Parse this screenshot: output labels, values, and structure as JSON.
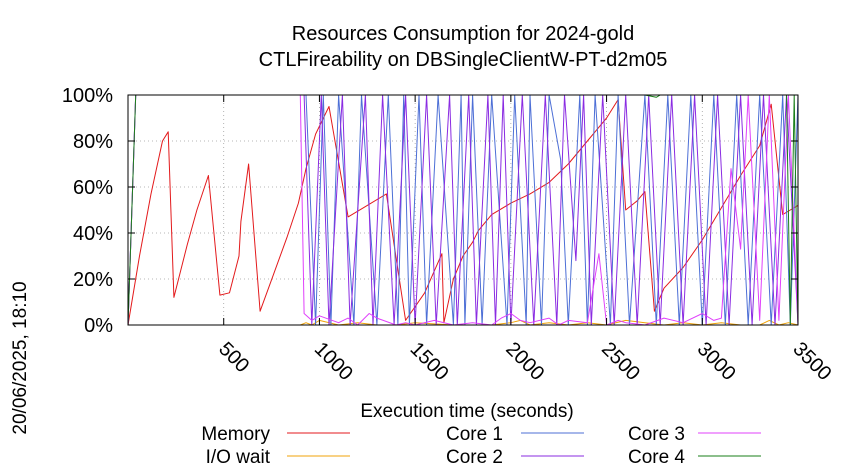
{
  "chart_data": {
    "type": "line",
    "title": "Resources Consumption for 2024-gold",
    "subtitle": "CTLFireability on DBSingleClientW-PT-d2m05",
    "xlabel": "Execution time (seconds)",
    "ylabel": "",
    "timestamp": "20/06/2025, 18:10",
    "xlim": [
      0,
      3500
    ],
    "ylim": [
      0,
      100
    ],
    "x_ticks": [
      500,
      1000,
      1500,
      2000,
      2500,
      3000,
      3500
    ],
    "x_tick_labels": [
      "500",
      "1000",
      "1500",
      "2000",
      "2500",
      "3000",
      "3500"
    ],
    "y_ticks": [
      0,
      20,
      40,
      60,
      80,
      100
    ],
    "y_tick_labels": [
      "0%",
      "20%",
      "40%",
      "60%",
      "80%",
      "100%"
    ],
    "grid": true,
    "legend_position": "bottom",
    "series": [
      {
        "name": "Memory",
        "color": "#e31a1c",
        "x": [
          0,
          60,
          120,
          180,
          210,
          240,
          310,
          360,
          420,
          480,
          530,
          580,
          590,
          630,
          690,
          760,
          830,
          890,
          930,
          980,
          1050,
          1150,
          1250,
          1350,
          1450,
          1550,
          1640,
          1650,
          1700,
          1750,
          1800,
          1830,
          1900,
          2000,
          2100,
          2200,
          2300,
          2400,
          2500,
          2560,
          2600,
          2660,
          2700,
          2750,
          2800,
          2900,
          3000,
          3100,
          3200,
          3300,
          3360,
          3420,
          3460,
          3500
        ],
        "values": [
          0,
          30,
          57,
          80,
          84,
          12,
          35,
          50,
          65,
          13,
          14,
          30,
          45,
          70,
          6,
          22,
          38,
          53,
          68,
          83,
          95,
          47,
          52,
          57,
          2,
          14,
          31,
          1,
          20,
          30,
          36,
          41,
          48,
          53,
          57,
          62,
          70,
          80,
          90,
          98,
          50,
          54,
          58,
          6,
          16,
          25,
          37,
          51,
          65,
          78,
          96,
          48,
          50,
          52
        ]
      },
      {
        "name": "I/O wait",
        "color": "#f0a30a",
        "x": [
          0,
          900,
          930,
          960,
          1000,
          1100,
          1200,
          1300,
          1400,
          1500,
          1700,
          1900,
          2000,
          2050,
          2100,
          2200,
          2300,
          2400,
          2500,
          2600,
          2700,
          2800,
          2900,
          3000,
          3100,
          3200,
          3300,
          3350,
          3400,
          3450,
          3500
        ],
        "values": [
          0,
          0,
          1,
          0,
          2,
          0,
          1,
          0,
          0,
          1,
          0,
          0,
          1,
          2,
          0,
          1,
          0,
          1,
          0,
          2,
          1,
          0,
          1,
          0,
          1,
          0,
          0,
          2,
          0,
          1,
          0
        ]
      },
      {
        "name": "Core 1",
        "color": "#4d6fd6",
        "x": [
          0,
          40,
          930,
          980,
          1020,
          1060,
          1100,
          1180,
          1220,
          1300,
          1360,
          1410,
          1440,
          1470,
          1520,
          1560,
          1620,
          1700,
          1740,
          1760,
          1800,
          1850,
          1900,
          1980,
          2020,
          2080,
          2100,
          2160,
          2200,
          2260,
          2300,
          2360,
          2400,
          2440,
          2520,
          2560,
          2620,
          2700,
          2760,
          2820,
          2880,
          2940,
          3000,
          3060,
          3120,
          3180,
          3240,
          3300,
          3360,
          3420,
          3460,
          3500
        ],
        "values": [
          0,
          100,
          100,
          0,
          100,
          0,
          100,
          0,
          100,
          0,
          100,
          0,
          100,
          0,
          100,
          0,
          100,
          0,
          100,
          0,
          100,
          0,
          100,
          0,
          100,
          0,
          100,
          0,
          100,
          72,
          0,
          100,
          0,
          100,
          0,
          100,
          0,
          100,
          0,
          100,
          0,
          100,
          0,
          100,
          0,
          100,
          0,
          100,
          0,
          100,
          0,
          100
        ]
      },
      {
        "name": "Core 2",
        "color": "#8a2be2",
        "x": [
          0,
          40,
          920,
          960,
          1010,
          1050,
          1120,
          1160,
          1240,
          1280,
          1330,
          1390,
          1450,
          1500,
          1560,
          1610,
          1680,
          1720,
          1780,
          1820,
          1880,
          1920,
          1960,
          2000,
          2060,
          2120,
          2180,
          2240,
          2280,
          2340,
          2380,
          2420,
          2480,
          2540,
          2600,
          2660,
          2720,
          2780,
          2840,
          2900,
          2960,
          3020,
          3080,
          3140,
          3200,
          3260,
          3320,
          3380,
          3440,
          3500
        ],
        "values": [
          0,
          100,
          100,
          0,
          100,
          0,
          100,
          0,
          100,
          0,
          100,
          0,
          100,
          0,
          100,
          0,
          100,
          0,
          100,
          0,
          100,
          0,
          100,
          0,
          100,
          0,
          100,
          0,
          100,
          28,
          100,
          0,
          100,
          0,
          100,
          0,
          100,
          0,
          100,
          0,
          100,
          0,
          100,
          0,
          100,
          0,
          100,
          0,
          100,
          0
        ]
      },
      {
        "name": "Core 3",
        "color": "#e040fb",
        "x": [
          0,
          40,
          900,
          920,
          960,
          1000,
          1100,
          1150,
          1200,
          1260,
          1300,
          1400,
          1450,
          1500,
          1600,
          1700,
          1800,
          1900,
          1950,
          2000,
          2050,
          2100,
          2200,
          2250,
          2300,
          2400,
          2460,
          2500,
          2560,
          2600,
          2700,
          2800,
          2900,
          3000,
          3060,
          3100,
          3150,
          3200,
          3240,
          3300,
          3350,
          3400,
          3450,
          3500
        ],
        "values": [
          0,
          100,
          100,
          5,
          2,
          4,
          1,
          3,
          0,
          5,
          3,
          0,
          1,
          0,
          2,
          0,
          1,
          0,
          3,
          5,
          2,
          1,
          3,
          0,
          2,
          1,
          31,
          0,
          2,
          1,
          0,
          3,
          1,
          5,
          2,
          3,
          68,
          33,
          100,
          2,
          100,
          2,
          100,
          0
        ]
      },
      {
        "name": "Core 4",
        "color": "#1a7f1a",
        "x": [
          0,
          40,
          2700,
          2760,
          2780,
          2800,
          3000,
          3300,
          3440,
          3460,
          3480,
          3500
        ],
        "values": [
          0,
          100,
          100,
          99,
          100,
          100,
          100,
          100,
          100,
          0,
          100,
          0
        ]
      }
    ]
  }
}
